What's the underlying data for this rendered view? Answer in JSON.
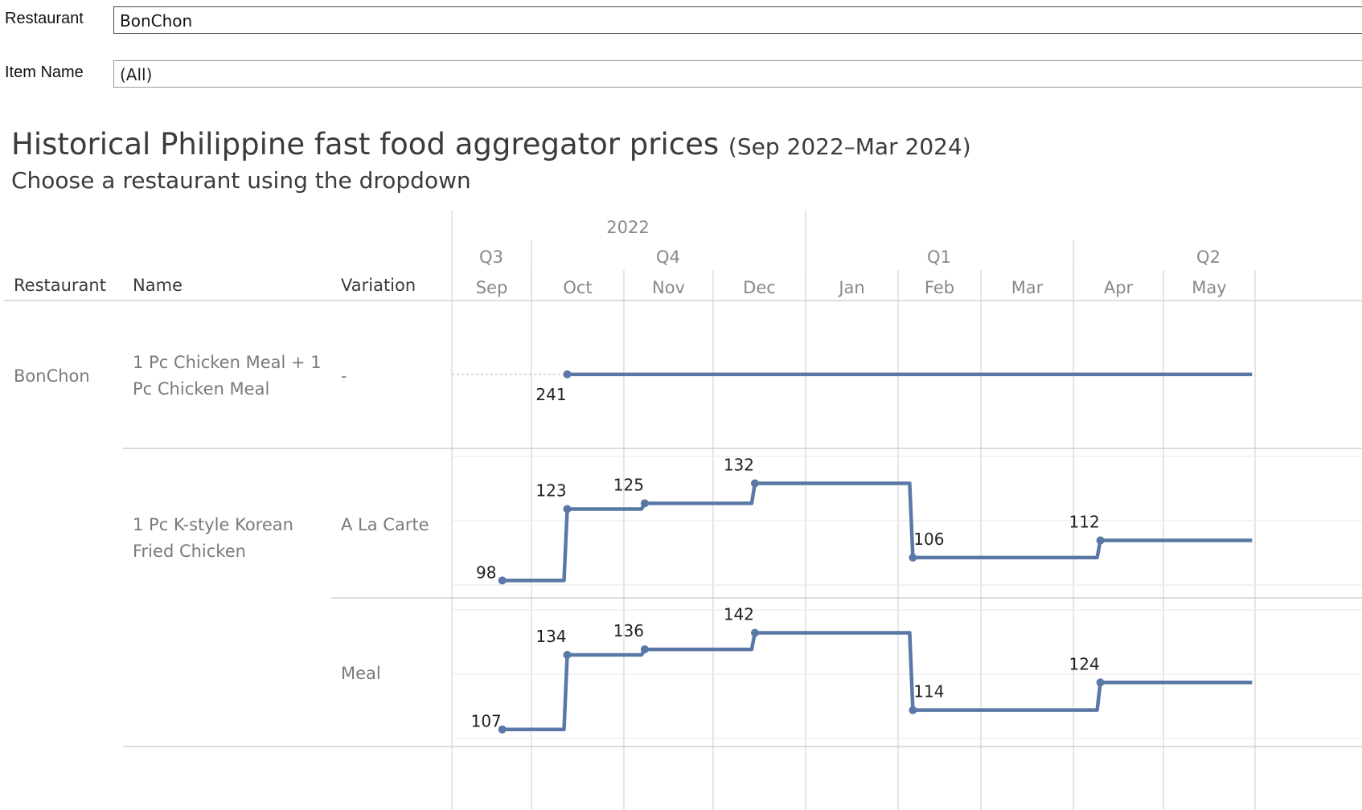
{
  "filters": {
    "restaurant_label": "Restaurant",
    "restaurant_value": "BonChon",
    "item_label": "Item Name",
    "item_value": "(All)"
  },
  "title": {
    "main": "Historical Philippine fast food aggregator prices",
    "range": "(Sep 2022–Mar 2024)",
    "subtitle": "Choose a restaurant using the dropdown"
  },
  "table_headers": {
    "restaurant": "Restaurant",
    "name": "Name",
    "variation": "Variation"
  },
  "rows": {
    "restaurant": "BonChon",
    "items": [
      {
        "name": "1 Pc Chicken Meal + 1 Pc Chicken Meal",
        "variations": [
          "-"
        ]
      },
      {
        "name": "1 Pc K-style Korean Fried Chicken",
        "variations": [
          "A La Carte",
          "Meal"
        ]
      }
    ]
  },
  "colors": {
    "line": "#5a78a6",
    "gridline": "#d4d4d4",
    "divider": "#c8c8c8",
    "axis_text": "#888888"
  },
  "chart_data": {
    "type": "line",
    "step": true,
    "x_axis": {
      "years": [
        "2022"
      ],
      "quarters": [
        "Q3",
        "Q4",
        "Q1",
        "Q2"
      ],
      "months": [
        "Sep",
        "Oct",
        "Nov",
        "Dec",
        "Jan",
        "Feb",
        "Mar",
        "Apr",
        "May"
      ]
    },
    "panels": [
      {
        "row": "1 Pc Chicken Meal + 1 Pc Chicken Meal / -",
        "points": [
          {
            "x": "2022-10-13",
            "y": 241,
            "label": "241"
          },
          {
            "x": "2023-05-31",
            "y": 241
          }
        ],
        "leading_dashed_from": "2022-09-01",
        "ylim": [
          200,
          280
        ]
      },
      {
        "row": "1 Pc K-style Korean Fried Chicken / A La Carte",
        "points": [
          {
            "x": "2022-09-20",
            "y": 98,
            "label": "98"
          },
          {
            "x": "2022-10-13",
            "y": 123,
            "label": "123"
          },
          {
            "x": "2022-11-08",
            "y": 125,
            "label": "125"
          },
          {
            "x": "2022-12-15",
            "y": 132,
            "label": "132"
          },
          {
            "x": "2023-02-06",
            "y": 106,
            "label": "106"
          },
          {
            "x": "2023-04-10",
            "y": 112,
            "label": "112"
          },
          {
            "x": "2023-05-31",
            "y": 112
          }
        ],
        "ylim": [
          95,
          140
        ]
      },
      {
        "row": "1 Pc K-style Korean Fried Chicken / Meal",
        "points": [
          {
            "x": "2022-09-20",
            "y": 107,
            "label": "107"
          },
          {
            "x": "2022-10-13",
            "y": 134,
            "label": "134"
          },
          {
            "x": "2022-11-08",
            "y": 136,
            "label": "136"
          },
          {
            "x": "2022-12-15",
            "y": 142,
            "label": "142"
          },
          {
            "x": "2023-02-06",
            "y": 114,
            "label": "114"
          },
          {
            "x": "2023-04-10",
            "y": 124,
            "label": "124"
          },
          {
            "x": "2023-05-31",
            "y": 124
          }
        ],
        "ylim": [
          104,
          150
        ]
      }
    ]
  }
}
